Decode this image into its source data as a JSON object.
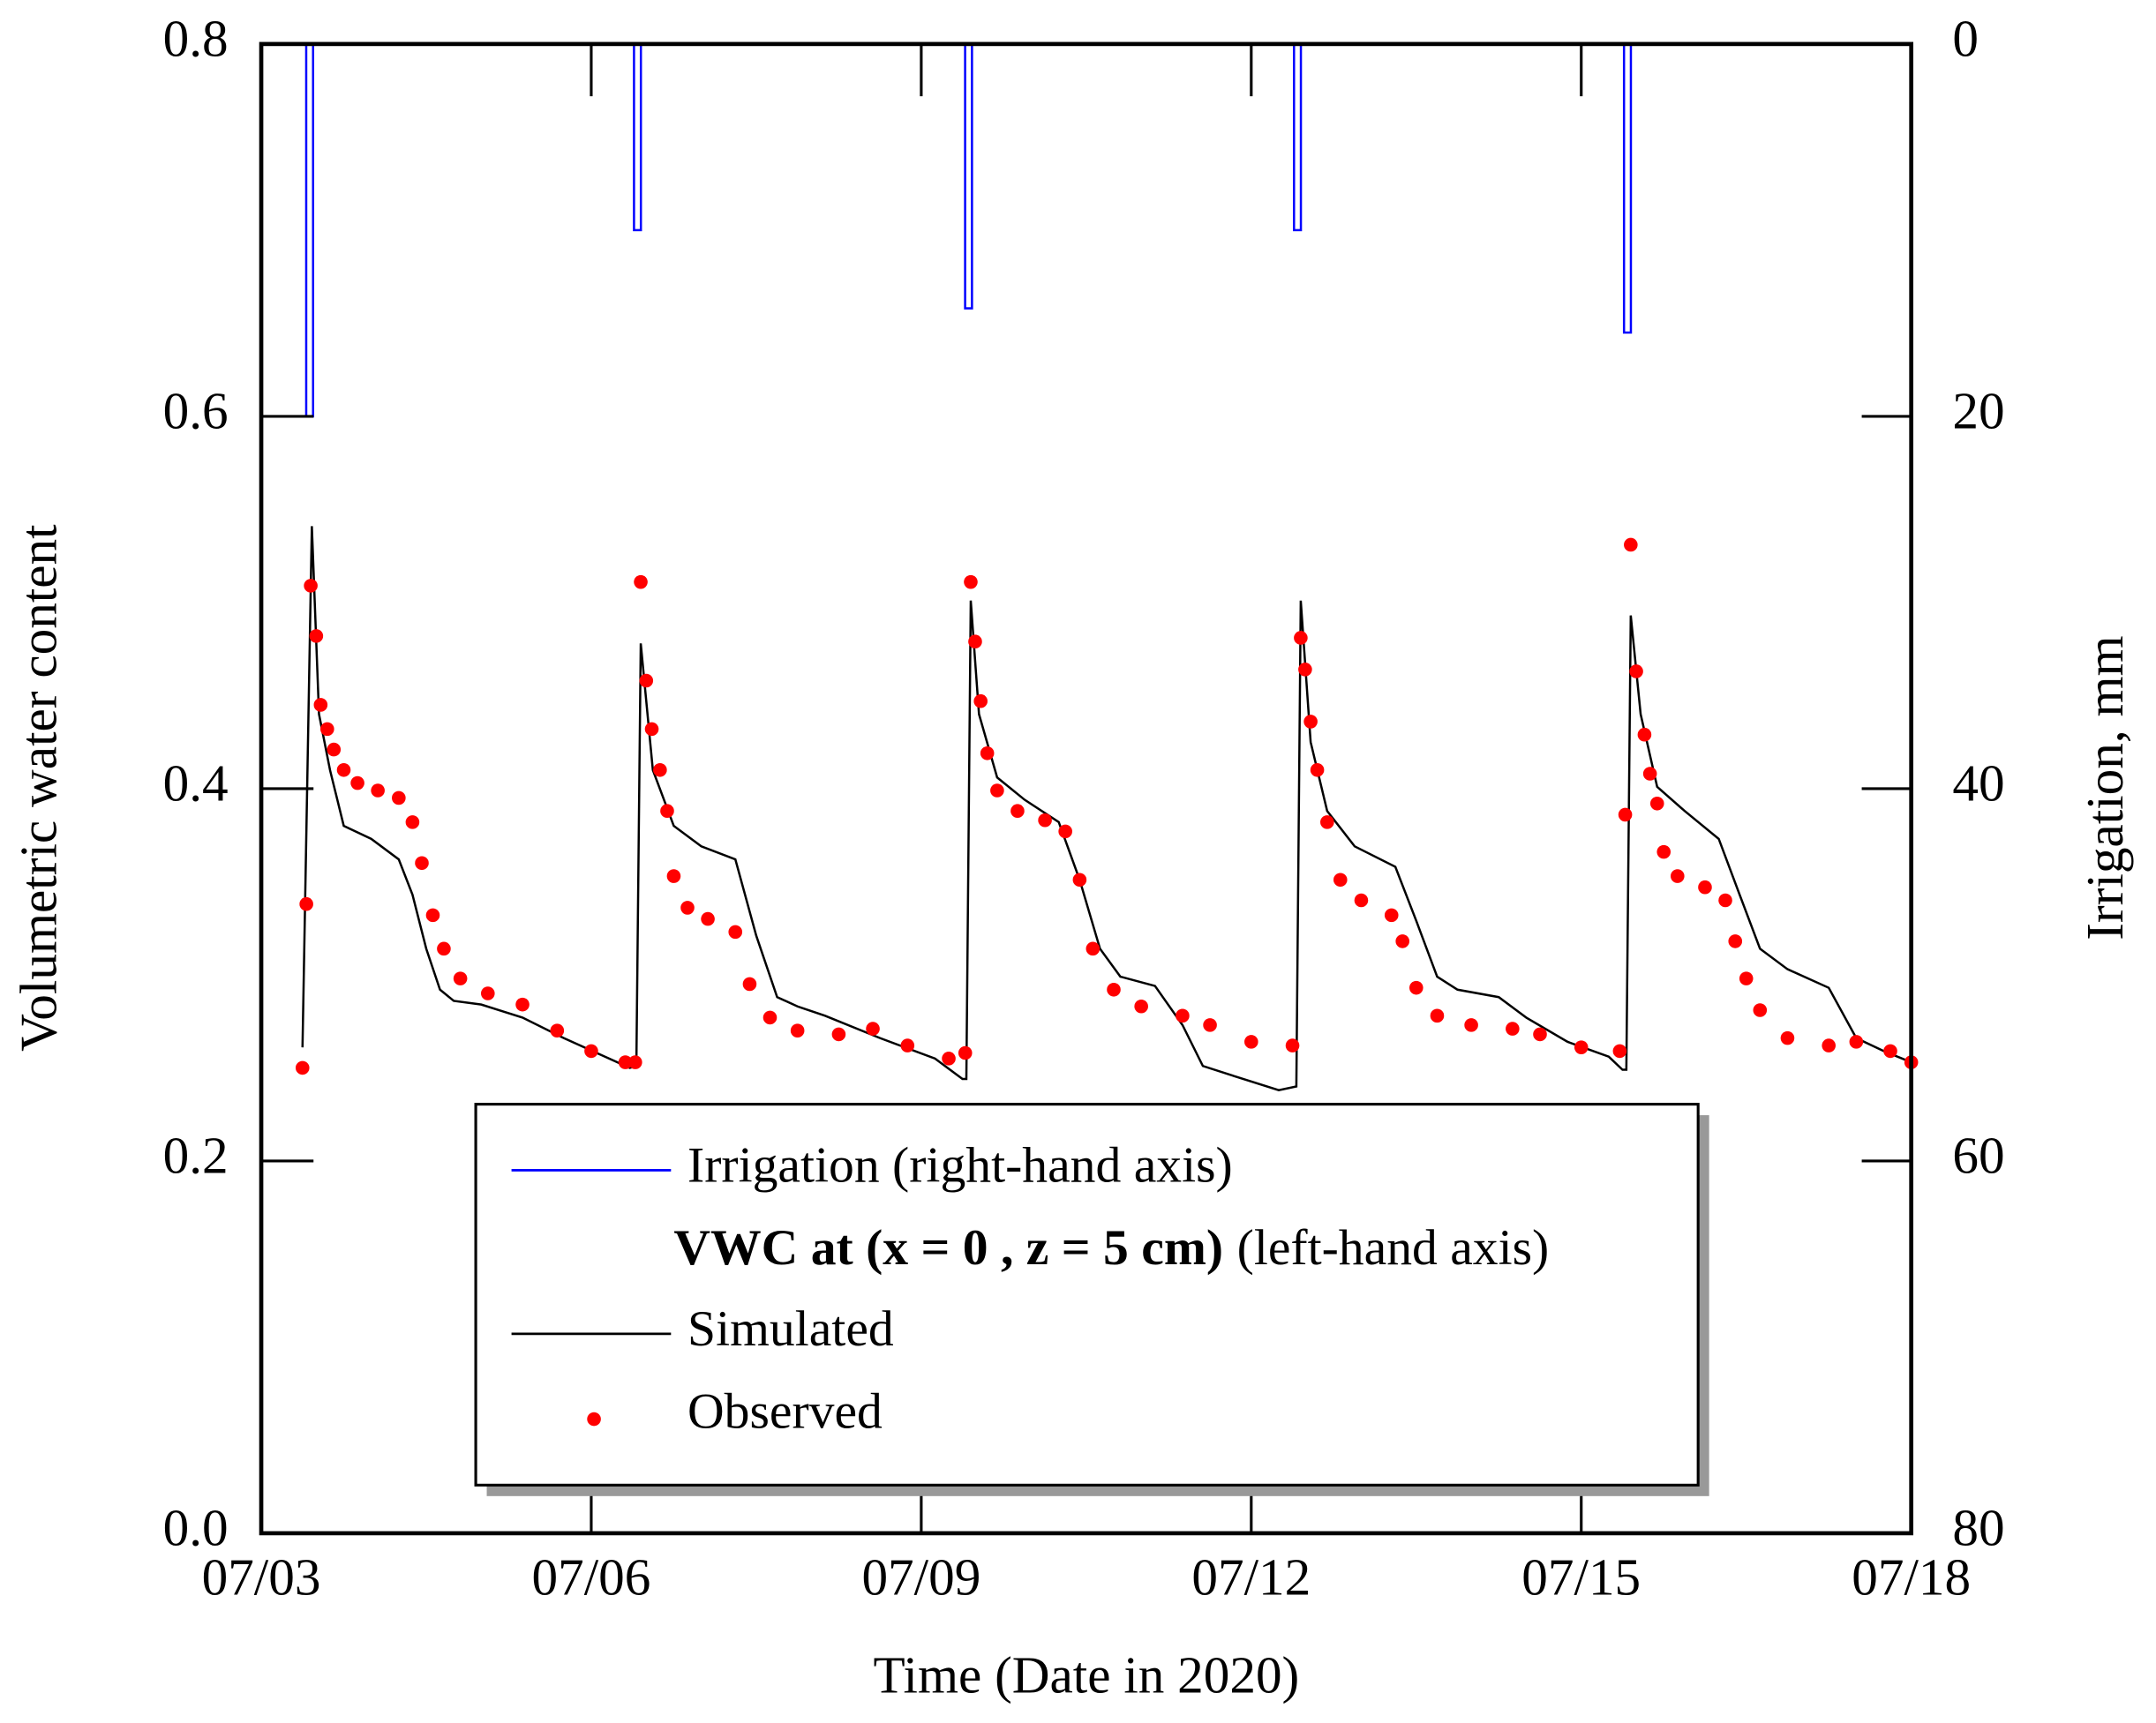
{
  "chart_data": {
    "type": "combo",
    "xlabel": "Time (Date in 2020)",
    "ylabel": "Volumetric water content",
    "y2label": "Irrigation, mm",
    "xlim": [
      3,
      18
    ],
    "xticks": [
      {
        "value": 3,
        "label": "07/03"
      },
      {
        "value": 6,
        "label": "07/06"
      },
      {
        "value": 9,
        "label": "07/09"
      },
      {
        "value": 12,
        "label": "07/12"
      },
      {
        "value": 15,
        "label": "07/15"
      },
      {
        "value": 18,
        "label": "07/18"
      }
    ],
    "ylim": [
      0,
      0.8
    ],
    "yticks": [
      {
        "value": 0,
        "label": "0.0"
      },
      0.2,
      0.4,
      0.6,
      0.8
    ],
    "y2lim": [
      0,
      80
    ],
    "y2ticks": [
      0,
      20,
      40,
      60,
      80
    ],
    "y2_inverted": true,
    "legend_heading": [
      "VWC at (x = 0 , z = 5 cm)",
      "(left-hand axis)"
    ],
    "series": [
      {
        "name": "Irrigation (right-hand axis)",
        "type": "bar",
        "axis": "y2",
        "color": "#0000ff",
        "x": [
          3.44,
          6.42,
          9.43,
          12.42,
          15.42
        ],
        "values": [
          20,
          10,
          14.2,
          10,
          15.5
        ]
      },
      {
        "name": "Simulated",
        "type": "line",
        "color": "#000000",
        "x": [
          3.375,
          3.46,
          3.525,
          3.625,
          3.75,
          4.0,
          4.25,
          4.375,
          4.5,
          4.625,
          4.75,
          5.0,
          5.375,
          5.75,
          6.125,
          6.35,
          6.41,
          6.45,
          6.56,
          6.75,
          7.0,
          7.31,
          7.5,
          7.69,
          7.875,
          8.125,
          8.625,
          9.125,
          9.375,
          9.41,
          9.45,
          9.525,
          9.69,
          9.94,
          10.25,
          10.44,
          10.625,
          10.81,
          11.125,
          11.375,
          11.56,
          11.875,
          12.25,
          12.41,
          12.45,
          12.54,
          12.69,
          12.94,
          13.31,
          13.5,
          13.69,
          13.875,
          14.25,
          14.5,
          14.875,
          15.25,
          15.375,
          15.41,
          15.45,
          15.54,
          15.69,
          15.94,
          16.25,
          16.44,
          16.625,
          16.875,
          17.25,
          17.5,
          17.75,
          18.0
        ],
        "values": [
          0.261,
          0.541,
          0.44,
          0.41,
          0.38,
          0.373,
          0.362,
          0.343,
          0.314,
          0.292,
          0.286,
          0.284,
          0.277,
          0.266,
          0.256,
          0.25,
          0.251,
          0.478,
          0.41,
          0.38,
          0.369,
          0.362,
          0.321,
          0.288,
          0.283,
          0.278,
          0.266,
          0.255,
          0.244,
          0.244,
          0.501,
          0.44,
          0.406,
          0.394,
          0.382,
          0.351,
          0.314,
          0.299,
          0.294,
          0.273,
          0.251,
          0.245,
          0.238,
          0.24,
          0.501,
          0.425,
          0.388,
          0.369,
          0.358,
          0.329,
          0.299,
          0.292,
          0.288,
          0.277,
          0.264,
          0.256,
          0.249,
          0.249,
          0.493,
          0.44,
          0.401,
          0.388,
          0.373,
          0.343,
          0.314,
          0.303,
          0.293,
          0.266,
          0.259,
          0.253
        ]
      },
      {
        "name": "Observed",
        "type": "scatter",
        "color": "#ff0000",
        "x": [
          3.375,
          3.41,
          3.45,
          3.5,
          3.54,
          3.6,
          3.66,
          3.75,
          3.875,
          4.06,
          4.25,
          4.375,
          4.46,
          4.56,
          4.66,
          4.81,
          5.06,
          5.375,
          5.69,
          6.0,
          6.31,
          6.4,
          6.45,
          6.5,
          6.55,
          6.625,
          6.69,
          6.75,
          6.875,
          7.06,
          7.31,
          7.44,
          7.625,
          7.875,
          8.25,
          8.56,
          8.875,
          9.25,
          9.4,
          9.45,
          9.49,
          9.54,
          9.6,
          9.69,
          9.875,
          10.125,
          10.31,
          10.44,
          10.56,
          10.75,
          11.0,
          11.375,
          11.625,
          12.0,
          12.375,
          12.45,
          12.49,
          12.54,
          12.6,
          12.69,
          12.81,
          13.0,
          13.275,
          13.375,
          13.5,
          13.69,
          14.0,
          14.375,
          14.625,
          15.0,
          15.35,
          15.4,
          15.45,
          15.5,
          15.575,
          15.625,
          15.69,
          15.75,
          15.875,
          16.125,
          16.31,
          16.4,
          16.5,
          16.625,
          16.875,
          17.25,
          17.5,
          17.81,
          18.0
        ],
        "values": [
          0.25,
          0.338,
          0.509,
          0.482,
          0.445,
          0.432,
          0.421,
          0.41,
          0.403,
          0.399,
          0.395,
          0.382,
          0.36,
          0.332,
          0.314,
          0.298,
          0.29,
          0.284,
          0.27,
          0.259,
          0.253,
          0.253,
          0.511,
          0.458,
          0.432,
          0.41,
          0.388,
          0.353,
          0.336,
          0.33,
          0.323,
          0.295,
          0.277,
          0.27,
          0.268,
          0.271,
          0.262,
          0.255,
          0.258,
          0.511,
          0.479,
          0.447,
          0.419,
          0.399,
          0.388,
          0.383,
          0.377,
          0.351,
          0.314,
          0.292,
          0.283,
          0.278,
          0.273,
          0.264,
          0.262,
          0.481,
          0.464,
          0.436,
          0.41,
          0.382,
          0.351,
          0.34,
          0.332,
          0.318,
          0.293,
          0.278,
          0.273,
          0.271,
          0.268,
          0.261,
          0.259,
          0.386,
          0.531,
          0.463,
          0.429,
          0.408,
          0.392,
          0.366,
          0.353,
          0.347,
          0.34,
          0.318,
          0.298,
          0.281,
          0.266,
          0.262,
          0.264,
          0.259,
          0.253
        ]
      }
    ]
  }
}
